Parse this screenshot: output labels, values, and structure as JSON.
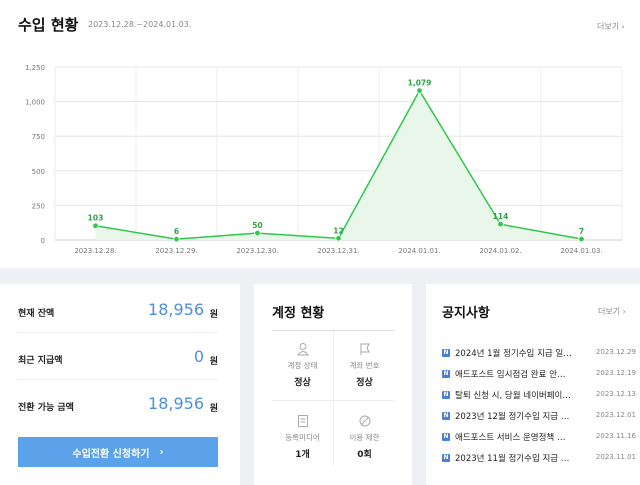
{
  "income": {
    "title": "수입 현황",
    "date_range": "2023.12.28.~2024.01.03.",
    "more": "더보기"
  },
  "chart_data": {
    "type": "area",
    "categories": [
      "2023.12.28.",
      "2023.12.29.",
      "2023.12.30.",
      "2023.12.31.",
      "2024.01.01.",
      "2024.01.02.",
      "2024.01.03."
    ],
    "values": [
      103,
      6,
      50,
      12,
      1079,
      114,
      7
    ],
    "data_labels": [
      "103",
      "6",
      "50",
      "12",
      "1,079",
      "114",
      "7"
    ],
    "yticks": [
      0,
      250,
      500,
      750,
      1000,
      1250
    ],
    "ytick_labels": [
      "0",
      "250",
      "500",
      "750",
      "1,000",
      "1,250"
    ],
    "ylim": [
      0,
      1250
    ],
    "grid": true,
    "colors": {
      "line": "#2ec84a",
      "fill": "#e8f7ea",
      "label": "#2ca443"
    }
  },
  "balance": {
    "rows": [
      {
        "label": "현재 잔액",
        "value": "18,956",
        "unit": "원"
      },
      {
        "label": "최근 지급액",
        "value": "0",
        "unit": "원"
      },
      {
        "label": "전환 가능 금액",
        "value": "18,956",
        "unit": "원"
      }
    ],
    "button_label": "수입전환 신청하기",
    "button_arrow": "›",
    "accent": "#5ba2ea"
  },
  "account": {
    "title": "계정 현황",
    "cells": [
      {
        "icon": "person-icon",
        "label": "계정 상태",
        "value": "정상"
      },
      {
        "icon": "flag-icon",
        "label": "계좌 번호",
        "value": "정상"
      },
      {
        "icon": "document-icon",
        "label": "등록미디어",
        "value": "1개"
      },
      {
        "icon": "prohibited-icon",
        "label": "이용 제한",
        "value": "0회"
      }
    ]
  },
  "notices": {
    "title": "공지사항",
    "more": "더보기",
    "badge": "N",
    "items": [
      {
        "text": "2024년 1월 정기수입 지급 일…",
        "date": "2023.12.29"
      },
      {
        "text": "애드포스트 임시점검 완료 안…",
        "date": "2023.12.19"
      },
      {
        "text": "탈퇴 신청 시, 당월 네이버페이…",
        "date": "2023.12.13"
      },
      {
        "text": "2023년 12월 정기수입 지급 …",
        "date": "2023.12.01"
      },
      {
        "text": "애드포스트 서비스 운영정책 …",
        "date": "2023.11.16"
      },
      {
        "text": "2023년 11월 정기수입 지급 …",
        "date": "2023.11.01"
      }
    ]
  }
}
